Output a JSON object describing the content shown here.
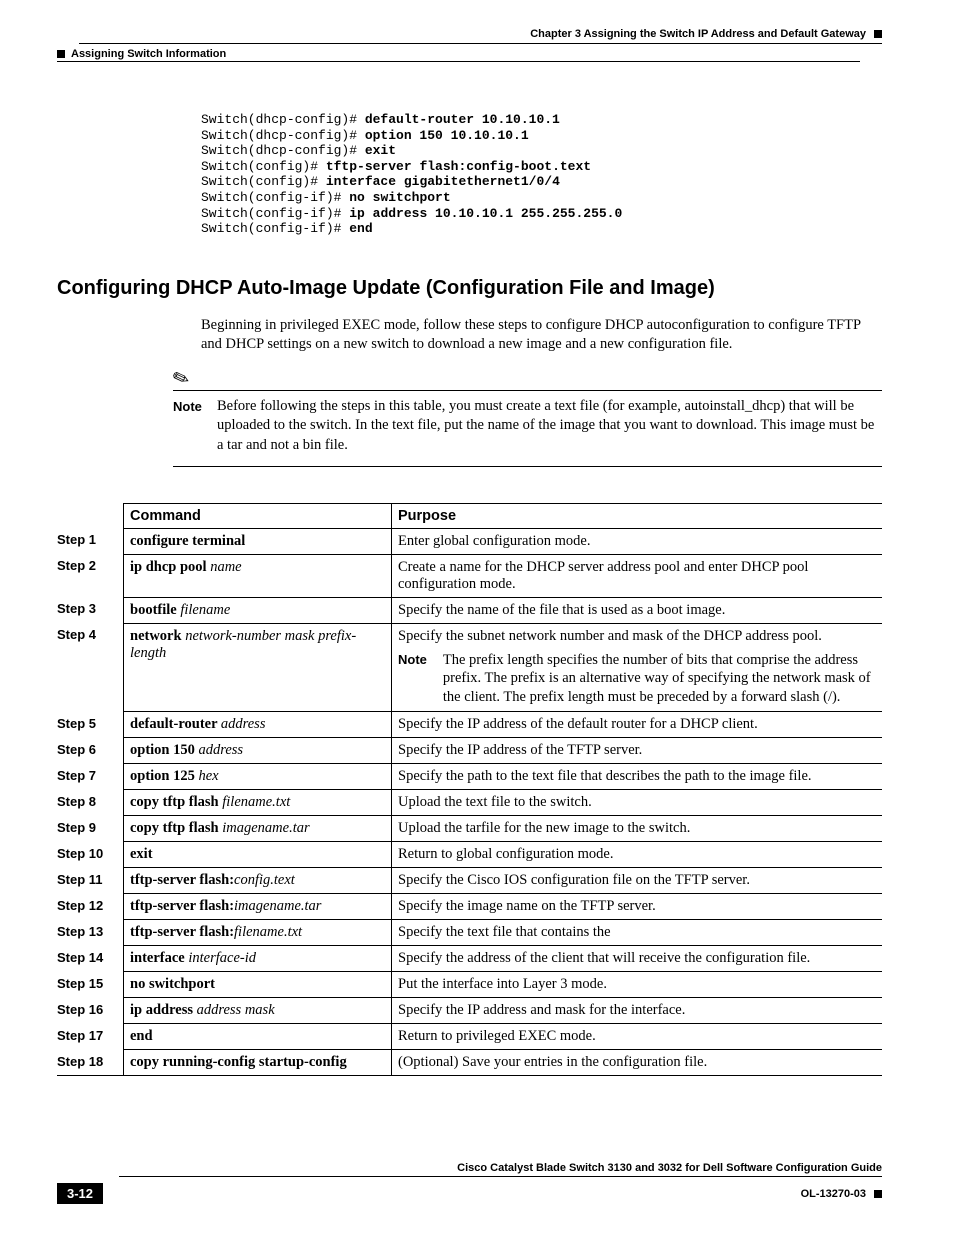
{
  "header": {
    "chapter": "Chapter 3      Assigning the Switch IP Address and Default Gateway",
    "section": "Assigning Switch Information"
  },
  "code": {
    "l1p": "Switch(dhcp-config)# ",
    "l1b": "default-router 10.10.10.1",
    "l2p": "Switch(dhcp-config)# ",
    "l2b": "option 150 10.10.10.1",
    "l3p": "Switch(dhcp-config)# ",
    "l3b": "exit",
    "l4p": "Switch(config)# ",
    "l4b": "tftp-server flash:config-boot.text",
    "l5p": "Switch(config)# ",
    "l5b": "interface gigabitethernet1/0/4",
    "l6p": "Switch(config-if)# ",
    "l6b": "no switchport",
    "l7p": "Switch(config-if)# ",
    "l7b": "ip address 10.10.10.1 255.255.255.0",
    "l8p": "Switch(config-if)# ",
    "l8b": "end"
  },
  "h2": "Configuring DHCP Auto-Image Update (Configuration File and Image)",
  "intro": "Beginning in privileged EXEC mode, follow these steps to configure DHCP autoconfiguration to configure TFTP and DHCP settings on a new switch to download a new image and a new configuration file.",
  "note": {
    "label": "Note",
    "text": "Before following the steps in this table, you must create a text file (for example, autoinstall_dhcp) that will be uploaded to the switch. In the text file, put the name of the image that you want to download. This image must be a tar and not a bin file."
  },
  "table": {
    "h_cmd": "Command",
    "h_purpose": "Purpose",
    "note_label": "Note",
    "rows": [
      {
        "step": "Step 1",
        "cmd_b": "configure terminal",
        "cmd_i": "",
        "purpose": "Enter global configuration mode."
      },
      {
        "step": "Step 2",
        "cmd_b": "ip dhcp pool ",
        "cmd_i": "name",
        "purpose": "Create a name for the DHCP server address pool and enter DHCP pool configuration mode."
      },
      {
        "step": "Step 3",
        "cmd_b": "bootfile ",
        "cmd_i": "filename",
        "purpose": "Specify the name of the file that is used as a boot image."
      },
      {
        "step": "Step 4",
        "cmd_b": "network ",
        "cmd_i": "network-number mask prefix-length",
        "purpose": "Specify the subnet network number and mask of the DHCP address pool.",
        "note": "The prefix length specifies the number of bits that comprise the address prefix. The prefix is an alternative way of specifying the network mask of the client. The prefix length must be preceded by a forward slash (/)."
      },
      {
        "step": "Step 5",
        "cmd_b": "default-router ",
        "cmd_i": "address",
        "purpose": "Specify the IP address of the default router for a DHCP client."
      },
      {
        "step": "Step 6",
        "cmd_b": "option 150 ",
        "cmd_i": "address",
        "purpose": "Specify the IP address of the TFTP server."
      },
      {
        "step": "Step 7",
        "cmd_b": "option 125 ",
        "cmd_i": "hex",
        "purpose": "Specify the path to the text file that describes the path to the image file."
      },
      {
        "step": "Step 8",
        "cmd_b": "copy tftp flash ",
        "cmd_i": "filename.txt",
        "purpose": "Upload the text file to the switch."
      },
      {
        "step": "Step 9",
        "cmd_b": "copy tftp flash ",
        "cmd_i": "imagename.tar",
        "purpose": "Upload the tarfile for the new image to the switch."
      },
      {
        "step": "Step 10",
        "cmd_b": "exit",
        "cmd_i": "",
        "purpose": "Return to global configuration mode."
      },
      {
        "step": "Step 11",
        "cmd_b": "tftp-server flash:",
        "cmd_i": "config.text",
        "purpose": "Specify the Cisco IOS configuration file on the TFTP server."
      },
      {
        "step": "Step 12",
        "cmd_b": "tftp-server flash:",
        "cmd_i": "imagename.tar",
        "purpose": "Specify the image name on the TFTP server."
      },
      {
        "step": "Step 13",
        "cmd_b": "tftp-server flash:",
        "cmd_i": "filename.txt",
        "purpose": "Specify the text file that contains the"
      },
      {
        "step": "Step 14",
        "cmd_b": "interface ",
        "cmd_i": "interface-id",
        "purpose": "Specify the address of the client that will receive the configuration file."
      },
      {
        "step": "Step 15",
        "cmd_b": "no switchport",
        "cmd_i": "",
        "purpose": "Put the interface into Layer 3 mode."
      },
      {
        "step": "Step 16",
        "cmd_b": "ip address ",
        "cmd_i": "address mask",
        "purpose": "Specify the IP address and mask for the interface."
      },
      {
        "step": "Step 17",
        "cmd_b": "end",
        "cmd_i": "",
        "purpose": "Return to privileged EXEC mode."
      },
      {
        "step": "Step 18",
        "cmd_b": "copy running-config startup-config",
        "cmd_i": "",
        "purpose": "(Optional) Save your entries in the configuration file."
      }
    ]
  },
  "footer": {
    "title": "Cisco Catalyst Blade Switch 3130 and 3032 for Dell Software Configuration Guide",
    "page": "3-12",
    "docid": "OL-13270-03"
  }
}
